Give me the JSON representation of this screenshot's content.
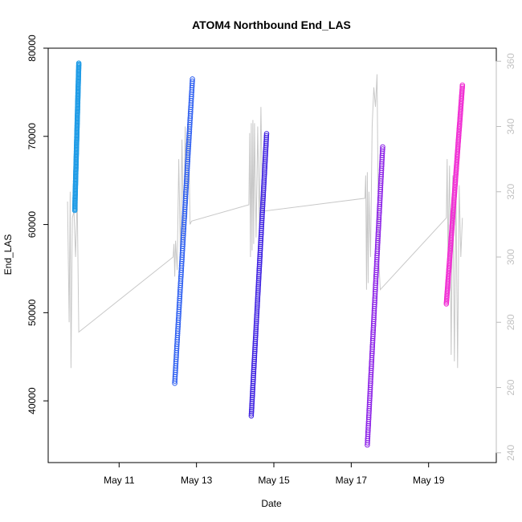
{
  "chart_data": {
    "type": "scatter",
    "title": "ATOM4 Northbound End_LAS",
    "xlabel": "Date",
    "ylabel": "End_LAS",
    "x_ticks": [
      "May 11",
      "May 13",
      "May 15",
      "May 17",
      "May 19"
    ],
    "y_ticks": [
      "40000",
      "50000",
      "60000",
      "70000",
      "80000"
    ],
    "y2_ticks": [
      "240",
      "260",
      "280",
      "300",
      "320",
      "340",
      "360"
    ],
    "xlim": [
      "2025-05-09T04:00",
      "2025-05-20T18:00"
    ],
    "ylim": [
      33000,
      80000
    ],
    "y2lim": [
      237,
      364
    ],
    "grid": false,
    "series": [
      {
        "color": "#1e9be6",
        "start": "2025-05-09T20:30",
        "end": "2025-05-09T23:00",
        "y_start": 61600,
        "y_end": 78300
      },
      {
        "color": "#2a5cf0",
        "start": "2025-05-12T10:30",
        "end": "2025-05-12T21:30",
        "y_start": 42000,
        "y_end": 76500
      },
      {
        "color": "#3b1de0",
        "start": "2025-05-14T10:00",
        "end": "2025-05-14T19:30",
        "y_start": 38300,
        "y_end": 70300
      },
      {
        "color": "#8a1ee6",
        "start": "2025-05-17T10:00",
        "end": "2025-05-17T19:30",
        "y_start": 35000,
        "y_end": 68800
      },
      {
        "color": "#f02ad2",
        "start": "2025-05-19T11:00",
        "end": "2025-05-19T21:00",
        "y_start": 51000,
        "y_end": 75800
      }
    ],
    "secondary_series": {
      "color": "#c8c8c8",
      "points": [
        [
          "2025-05-09T16:00",
          317
        ],
        [
          "2025-05-09T17:00",
          280
        ],
        [
          "2025-05-09T17:40",
          320
        ],
        [
          "2025-05-09T18:10",
          266
        ],
        [
          "2025-05-09T19:00",
          312
        ],
        [
          "2025-05-09T20:00",
          314
        ],
        [
          "2025-05-09T21:00",
          300
        ],
        [
          "2025-05-09T22:00",
          319
        ],
        [
          "2025-05-09T23:00",
          277
        ],
        [
          "2025-05-12T09:30",
          300
        ],
        [
          "2025-05-12T10:00",
          304
        ],
        [
          "2025-05-12T10:30",
          294
        ],
        [
          "2025-05-12T11:00",
          305
        ],
        [
          "2025-05-12T12:00",
          296
        ],
        [
          "2025-05-12T13:00",
          330
        ],
        [
          "2025-05-12T14:00",
          301
        ],
        [
          "2025-05-12T15:00",
          336
        ],
        [
          "2025-05-12T16:00",
          305
        ],
        [
          "2025-05-12T17:00",
          340
        ],
        [
          "2025-05-12T18:00",
          312
        ],
        [
          "2025-05-12T19:00",
          345
        ],
        [
          "2025-05-12T20:00",
          310
        ],
        [
          "2025-05-12T21:00",
          311
        ],
        [
          "2025-05-14T08:30",
          316
        ],
        [
          "2025-05-14T09:00",
          338
        ],
        [
          "2025-05-14T09:30",
          300
        ],
        [
          "2025-05-14T10:00",
          341
        ],
        [
          "2025-05-14T10:30",
          302
        ],
        [
          "2025-05-14T11:00",
          342
        ],
        [
          "2025-05-14T11:30",
          304
        ],
        [
          "2025-05-14T12:00",
          341
        ],
        [
          "2025-05-14T13:00",
          306
        ],
        [
          "2025-05-14T14:00",
          340
        ],
        [
          "2025-05-14T15:00",
          310
        ],
        [
          "2025-05-14T16:00",
          346
        ],
        [
          "2025-05-14T17:00",
          314
        ],
        [
          "2025-05-17T08:30",
          318
        ],
        [
          "2025-05-17T09:00",
          325
        ],
        [
          "2025-05-17T09:30",
          290
        ],
        [
          "2025-05-17T10:00",
          326
        ],
        [
          "2025-05-17T10:30",
          292
        ],
        [
          "2025-05-17T11:00",
          320
        ],
        [
          "2025-05-17T12:00",
          300
        ],
        [
          "2025-05-17T13:00",
          340
        ],
        [
          "2025-05-17T14:00",
          352
        ],
        [
          "2025-05-17T15:00",
          346
        ],
        [
          "2025-05-17T16:00",
          356
        ],
        [
          "2025-05-17T17:00",
          300
        ],
        [
          "2025-05-17T18:00",
          290
        ],
        [
          "2025-05-19T11:00",
          312
        ],
        [
          "2025-05-19T11:30",
          330
        ],
        [
          "2025-05-19T12:00",
          300
        ],
        [
          "2025-05-19T13:00",
          328
        ],
        [
          "2025-05-19T14:00",
          270
        ],
        [
          "2025-05-19T15:00",
          325
        ],
        [
          "2025-05-19T16:00",
          268
        ],
        [
          "2025-05-19T17:00",
          320
        ],
        [
          "2025-05-19T18:00",
          266
        ],
        [
          "2025-05-19T19:00",
          322
        ],
        [
          "2025-05-19T20:00",
          300
        ],
        [
          "2025-05-19T21:00",
          312
        ]
      ]
    }
  }
}
